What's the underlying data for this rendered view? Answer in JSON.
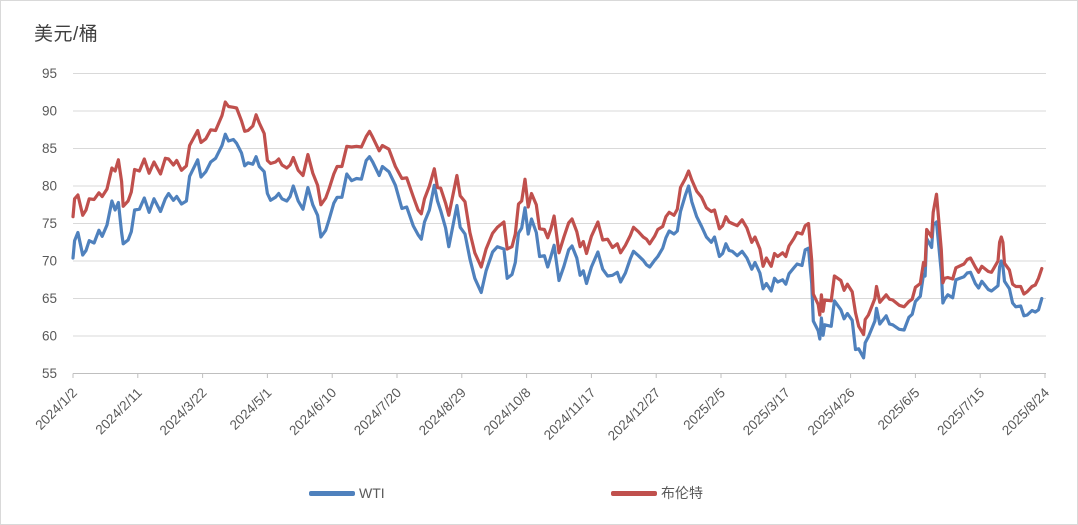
{
  "title": "美元/桶",
  "colors": {
    "wti_line": "#4F81BD",
    "brent_line": "#C0504D",
    "gridline": "#D9D9D9",
    "axis_line": "#BFBFBF",
    "tick_text": "#595959",
    "title_text": "#404040",
    "frame_border": "#D9D9D9",
    "background": "#FFFFFF"
  },
  "legend": {
    "wti_label": "WTI",
    "brent_label": "布伦特"
  },
  "chart_data": {
    "type": "line",
    "title": "美元/桶",
    "ylabel": "美元/桶",
    "xlabel": "",
    "grid": "horizontal",
    "legend_position": "bottom",
    "ylim": [
      55,
      95
    ],
    "y_tick_step": 5,
    "y_tick_labels": [
      "55",
      "60",
      "65",
      "70",
      "75",
      "80",
      "85",
      "90",
      "95"
    ],
    "x_tick_interval_days": 40,
    "x_tick_labels": [
      "2024/1/2",
      "2024/2/11",
      "2024/3/22",
      "2024/5/1",
      "2024/6/10",
      "2024/7/20",
      "2024/8/29",
      "2024/10/8",
      "2024/11/17",
      "2024/12/27",
      "2025/2/5",
      "2025/3/17",
      "2025/4/26",
      "2025/6/5",
      "2025/7/15",
      "2025/8/24"
    ],
    "x_total_days": 600,
    "x_days": [
      0,
      1,
      3,
      6,
      8,
      10,
      13,
      16,
      18,
      21,
      24,
      26,
      28,
      30,
      31,
      34,
      36,
      38,
      41,
      44,
      47,
      50,
      54,
      57,
      59,
      62,
      64,
      67,
      70,
      72,
      77,
      79,
      82,
      85,
      88,
      92,
      94,
      96,
      99,
      101,
      104,
      106,
      108,
      111,
      113,
      115,
      118,
      120,
      122,
      125,
      127,
      129,
      132,
      134,
      136,
      139,
      142,
      145,
      148,
      151,
      153,
      156,
      158,
      161,
      163,
      166,
      169,
      172,
      175,
      178,
      181,
      183,
      185,
      189,
      191,
      195,
      199,
      203,
      206,
      210,
      213,
      215,
      217,
      220,
      223,
      225,
      227,
      230,
      232,
      237,
      239,
      242,
      245,
      248,
      252,
      255,
      259,
      262,
      266,
      268,
      271,
      273,
      275,
      277,
      279,
      281,
      283,
      286,
      288,
      291,
      293,
      295,
      297,
      300,
      303,
      306,
      308,
      311,
      313,
      315,
      317,
      320,
      324,
      327,
      330,
      333,
      336,
      338,
      341,
      344,
      346,
      349,
      352,
      354,
      356,
      359,
      361,
      364,
      366,
      368,
      371,
      373,
      375,
      378,
      380,
      382,
      385,
      388,
      391,
      394,
      396,
      399,
      401,
      403,
      405,
      407,
      410,
      413,
      416,
      419,
      421,
      424,
      426,
      428,
      431,
      433,
      435,
      438,
      440,
      442,
      445,
      447,
      450,
      452,
      454,
      456,
      457,
      460,
      461,
      462,
      463,
      464,
      468,
      470,
      474,
      476,
      478,
      481,
      483,
      485,
      488,
      489,
      491,
      495,
      496,
      498,
      502,
      504,
      506,
      510,
      513,
      516,
      518,
      520,
      523,
      525,
      526,
      527,
      530,
      531,
      533,
      536,
      537,
      538,
      540,
      543,
      545,
      550,
      552,
      554,
      557,
      559,
      561,
      565,
      567,
      571,
      572,
      573,
      574,
      575,
      578,
      580,
      582,
      585,
      587,
      589,
      592,
      594,
      596,
      598
    ],
    "series": [
      {
        "name": "WTI",
        "color": "#4F81BD",
        "values": [
          70.4,
          72.7,
          73.8,
          70.8,
          71.4,
          72.7,
          72.4,
          74.1,
          73.3,
          74.8,
          78.0,
          76.8,
          77.8,
          73.8,
          72.3,
          72.8,
          73.9,
          76.8,
          76.9,
          78.4,
          76.5,
          78.3,
          76.6,
          78.3,
          79.0,
          78.1,
          78.6,
          77.6,
          78.0,
          81.3,
          83.5,
          81.2,
          81.9,
          83.2,
          83.7,
          85.4,
          86.9,
          86.0,
          86.2,
          85.7,
          84.4,
          82.7,
          83.1,
          82.9,
          83.9,
          82.6,
          81.9,
          79.0,
          78.1,
          78.5,
          79.0,
          78.3,
          78.0,
          78.6,
          80.0,
          78.0,
          76.9,
          79.8,
          77.5,
          76.1,
          73.2,
          74.1,
          75.5,
          77.7,
          78.5,
          78.5,
          81.6,
          80.7,
          81.0,
          80.9,
          83.4,
          83.9,
          83.2,
          81.4,
          82.6,
          81.9,
          80.1,
          77.0,
          77.2,
          74.7,
          73.5,
          72.9,
          75.2,
          76.8,
          80.1,
          78.0,
          76.7,
          74.4,
          71.9,
          77.4,
          74.5,
          73.6,
          70.3,
          67.7,
          65.8,
          68.7,
          71.2,
          71.9,
          71.6,
          67.7,
          68.2,
          69.8,
          73.7,
          74.4,
          77.1,
          73.6,
          75.6,
          73.8,
          70.6,
          70.7,
          69.2,
          70.6,
          72.1,
          67.4,
          69.3,
          71.5,
          72.0,
          70.4,
          68.1,
          68.7,
          67.0,
          69.2,
          71.2,
          68.9,
          68.0,
          68.1,
          68.5,
          67.2,
          68.4,
          70.3,
          71.3,
          70.7,
          70.1,
          69.5,
          69.2,
          70.1,
          70.6,
          71.7,
          73.1,
          74.0,
          73.6,
          74.0,
          76.6,
          78.8,
          80.0,
          77.9,
          75.9,
          74.6,
          73.2,
          72.5,
          73.2,
          70.6,
          71.0,
          72.3,
          71.4,
          71.3,
          70.7,
          71.3,
          70.4,
          68.9,
          69.8,
          68.4,
          66.3,
          67.0,
          66.0,
          67.7,
          67.2,
          67.5,
          66.9,
          68.3,
          69.1,
          69.6,
          69.4,
          71.5,
          71.7,
          67.0,
          62.0,
          60.7,
          59.6,
          62.4,
          60.1,
          61.5,
          61.3,
          64.7,
          63.5,
          62.3,
          63.0,
          62.1,
          58.2,
          58.3,
          57.1,
          59.1,
          59.9,
          62.0,
          63.7,
          61.6,
          62.7,
          61.6,
          61.5,
          60.9,
          60.8,
          62.5,
          62.9,
          64.6,
          65.3,
          68.2,
          68.0,
          73.0,
          71.8,
          74.8,
          75.2,
          68.5,
          64.4,
          64.9,
          65.5,
          65.1,
          67.5,
          67.9,
          68.4,
          68.5,
          67.0,
          66.4,
          67.3,
          66.2,
          66.0,
          66.7,
          69.2,
          70.0,
          69.3,
          67.3,
          66.3,
          64.4,
          63.9,
          64.0,
          62.7,
          62.8,
          63.4,
          63.2,
          63.5,
          65.0
        ]
      },
      {
        "name": "布伦特",
        "color": "#C0504D",
        "values": [
          75.9,
          78.3,
          78.8,
          76.1,
          76.8,
          78.3,
          78.2,
          79.1,
          78.6,
          79.6,
          82.4,
          82.0,
          83.5,
          80.6,
          77.3,
          78.0,
          79.2,
          82.2,
          82.0,
          83.6,
          81.7,
          83.2,
          81.6,
          83.7,
          83.6,
          82.8,
          83.4,
          82.1,
          82.7,
          85.4,
          87.4,
          85.8,
          86.3,
          87.5,
          87.4,
          89.4,
          91.2,
          90.6,
          90.5,
          90.4,
          88.7,
          87.3,
          87.4,
          88.0,
          89.5,
          88.4,
          87.0,
          83.4,
          83.0,
          83.2,
          83.6,
          82.8,
          82.4,
          82.8,
          83.8,
          82.1,
          81.4,
          84.2,
          81.7,
          80.1,
          77.5,
          78.4,
          79.6,
          81.6,
          82.6,
          82.6,
          85.3,
          85.2,
          85.3,
          85.2,
          86.6,
          87.3,
          86.5,
          84.7,
          85.4,
          84.9,
          82.6,
          81.0,
          81.1,
          78.6,
          76.8,
          76.3,
          78.3,
          80.0,
          82.3,
          79.8,
          79.7,
          77.7,
          76.1,
          81.4,
          78.7,
          77.9,
          73.8,
          71.1,
          69.2,
          71.6,
          73.7,
          74.5,
          75.2,
          71.6,
          71.9,
          73.6,
          77.6,
          78.0,
          80.9,
          77.2,
          79.0,
          77.5,
          74.3,
          74.2,
          73.1,
          74.3,
          76.0,
          71.1,
          73.2,
          75.1,
          75.6,
          73.9,
          71.9,
          72.6,
          71.0,
          73.3,
          75.2,
          72.8,
          72.9,
          71.8,
          72.3,
          71.1,
          72.1,
          73.4,
          74.5,
          73.9,
          73.2,
          72.9,
          72.3,
          73.3,
          74.2,
          74.6,
          75.9,
          76.5,
          76.1,
          76.9,
          79.8,
          81.0,
          82.0,
          80.8,
          79.3,
          78.5,
          77.1,
          76.6,
          76.8,
          74.3,
          74.7,
          75.9,
          75.2,
          75.0,
          74.7,
          75.5,
          74.4,
          72.5,
          73.2,
          71.6,
          69.3,
          70.4,
          69.3,
          71.0,
          70.6,
          71.1,
          70.6,
          72.0,
          73.0,
          73.8,
          73.6,
          74.7,
          75.0,
          70.1,
          65.6,
          64.2,
          62.8,
          65.5,
          63.3,
          64.8,
          64.7,
          68.0,
          67.4,
          66.1,
          66.9,
          65.9,
          63.1,
          61.3,
          60.2,
          62.2,
          62.8,
          65.0,
          66.6,
          64.5,
          65.5,
          64.9,
          64.8,
          64.1,
          63.9,
          64.6,
          64.9,
          66.5,
          67.0,
          69.8,
          69.4,
          74.2,
          73.2,
          76.5,
          78.9,
          71.5,
          67.1,
          67.7,
          67.8,
          67.6,
          69.1,
          69.6,
          70.2,
          70.4,
          69.2,
          68.5,
          69.3,
          68.6,
          68.5,
          70.0,
          72.5,
          73.2,
          72.5,
          69.7,
          68.8,
          66.9,
          66.6,
          66.6,
          65.6,
          65.9,
          66.6,
          66.8,
          67.7,
          69.0
        ]
      }
    ]
  }
}
